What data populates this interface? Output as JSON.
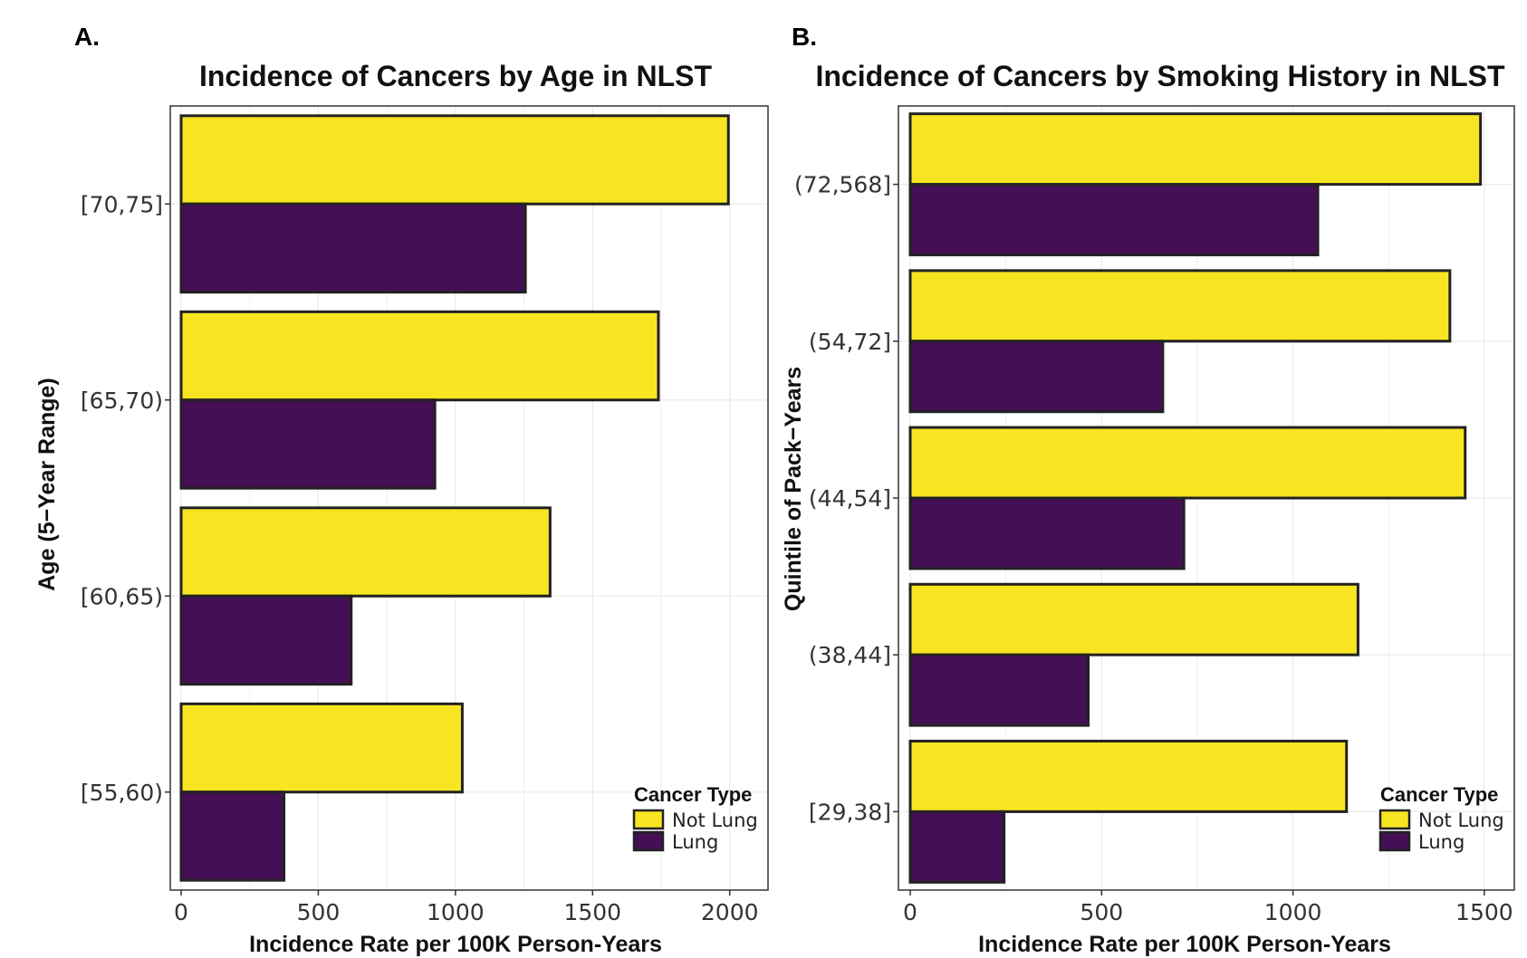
{
  "panels": [
    {
      "tag": "A.",
      "chart_title": "Incidence of Cancers by Age in NLST",
      "ylabel": "Age (5−Year Range)"
    },
    {
      "tag": "B.",
      "chart_title": "Incidence of Cancers by Smoking History in NLST",
      "ylabel": "Quintile of Pack−Years"
    }
  ],
  "legend": {
    "title": "Cancer Type",
    "items": [
      "Not Lung",
      "Lung"
    ]
  },
  "colors": {
    "not_lung": "#f8e521",
    "lung": "#440f54",
    "bar_border": "#222222",
    "grid": "#ebebeb",
    "panel_border": "#333333"
  },
  "chart_data": [
    {
      "type": "bar",
      "orientation": "horizontal",
      "title": "Incidence of Cancers by Age in NLST",
      "xlabel": "Incidence Rate per 100K Person-Years",
      "ylabel": "Age (5−Year Range)",
      "categories": [
        "[55,60)",
        "[60,65)",
        "[65,70)",
        "[70,75]"
      ],
      "series": [
        {
          "name": "Not Lung",
          "values": [
            1025,
            1345,
            1740,
            1995
          ]
        },
        {
          "name": "Lung",
          "values": [
            375,
            620,
            925,
            1255
          ]
        }
      ],
      "xlim": [
        0,
        2100
      ],
      "xticks": [
        0,
        500,
        1000,
        1500,
        2000
      ],
      "grid": true,
      "legend_position": "bottom-right"
    },
    {
      "type": "bar",
      "orientation": "horizontal",
      "title": "Incidence of Cancers by Smoking History in NLST",
      "xlabel": "Incidence Rate per 100K Person-Years",
      "ylabel": "Quintile of Pack−Years",
      "categories": [
        "[29,38]",
        "(38,44]",
        "(44,54]",
        "(54,72]",
        "(72,568]"
      ],
      "series": [
        {
          "name": "Not Lung",
          "values": [
            1140,
            1170,
            1450,
            1410,
            1490
          ]
        },
        {
          "name": "Lung",
          "values": [
            245,
            465,
            715,
            660,
            1065
          ]
        }
      ],
      "xlim": [
        0,
        1550
      ],
      "xticks": [
        0,
        500,
        1000,
        1500
      ],
      "grid": true,
      "legend_position": "bottom-right"
    }
  ]
}
